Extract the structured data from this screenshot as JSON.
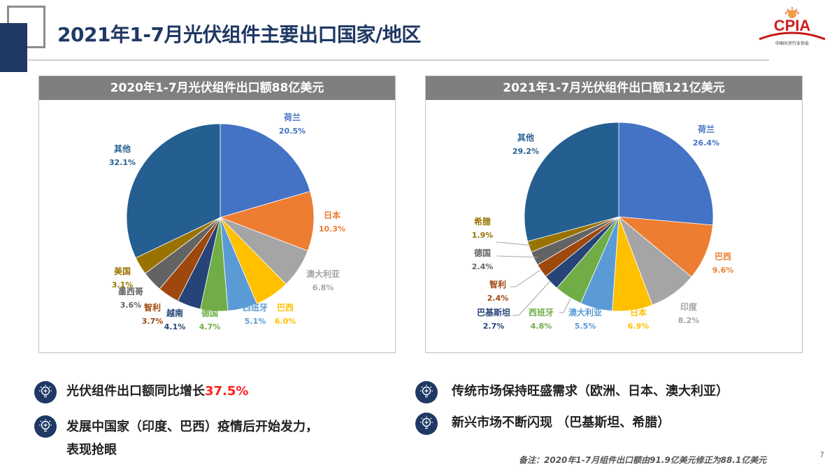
{
  "header": {
    "title": "2021年1-7月光伏组件主要出口国家/地区",
    "logo_text": "CPIA",
    "logo_subtitle": "中国光伏行业协会"
  },
  "colors": {
    "title": "#1f3864",
    "highlight": "#ff1f1f",
    "panel_header": "#7f7f7f",
    "slices": [
      "#4472c4",
      "#ed7d31",
      "#a5a5a5",
      "#ffc000",
      "#5b9bd5",
      "#70ad47",
      "#264478",
      "#9e480e",
      "#636363",
      "#997300",
      "#255e91"
    ]
  },
  "chart_data": [
    {
      "type": "pie",
      "title": "2020年1-7月光伏组件出口额88亿美元",
      "start": "12 o'clock, clockwise",
      "categories": [
        "荷兰",
        "日本",
        "澳大利亚",
        "巴西",
        "西班牙",
        "德国",
        "越南",
        "智利",
        "墨西哥",
        "美国",
        "其他"
      ],
      "values": [
        20.5,
        10.3,
        6.8,
        6.0,
        5.1,
        4.7,
        4.1,
        3.7,
        3.6,
        3.1,
        32.1
      ],
      "labels": [
        "20.5%",
        "10.3%",
        "6.8%",
        "6.0%",
        "5.1%",
        "4.7%",
        "4.1%",
        "3.7%",
        "3.6%",
        "3.1%",
        "32.1%"
      ]
    },
    {
      "type": "pie",
      "title": "2021年1-7月光伏组件出口额121亿美元",
      "start": "12 o'clock, clockwise",
      "categories": [
        "荷兰",
        "巴西",
        "印度",
        "日本",
        "澳大利亚",
        "西班牙",
        "巴基斯坦",
        "智利",
        "德国",
        "希腊",
        "其他"
      ],
      "values": [
        26.4,
        9.6,
        8.2,
        6.9,
        5.5,
        4.8,
        2.7,
        2.4,
        2.4,
        1.9,
        29.2
      ],
      "labels": [
        "26.4%",
        "9.6%",
        "8.2%",
        "6.9%",
        "5.5%",
        "4.8%",
        "2.7%",
        "2.4%",
        "2.4%",
        "1.9%",
        "29.2%"
      ]
    }
  ],
  "bullets": {
    "b1_text": "光伏组件出口额同比增长",
    "b1_highlight": "37.5%",
    "b2_line1": "发展中国家（印度、巴西）疫情后开始发力，",
    "b2_line2": "表现抢眼",
    "b3_text": "传统市场保持旺盛需求（欧洲、日本、澳大利亚）",
    "b4_text": "新兴市场不断闪现 （巴基斯坦、希腊）",
    "icon": "lightbulb-icon"
  },
  "footnote": "备注：2020年1-7月组件出口额由91.9亿美元修正为88.1亿美元",
  "page_number": "7"
}
